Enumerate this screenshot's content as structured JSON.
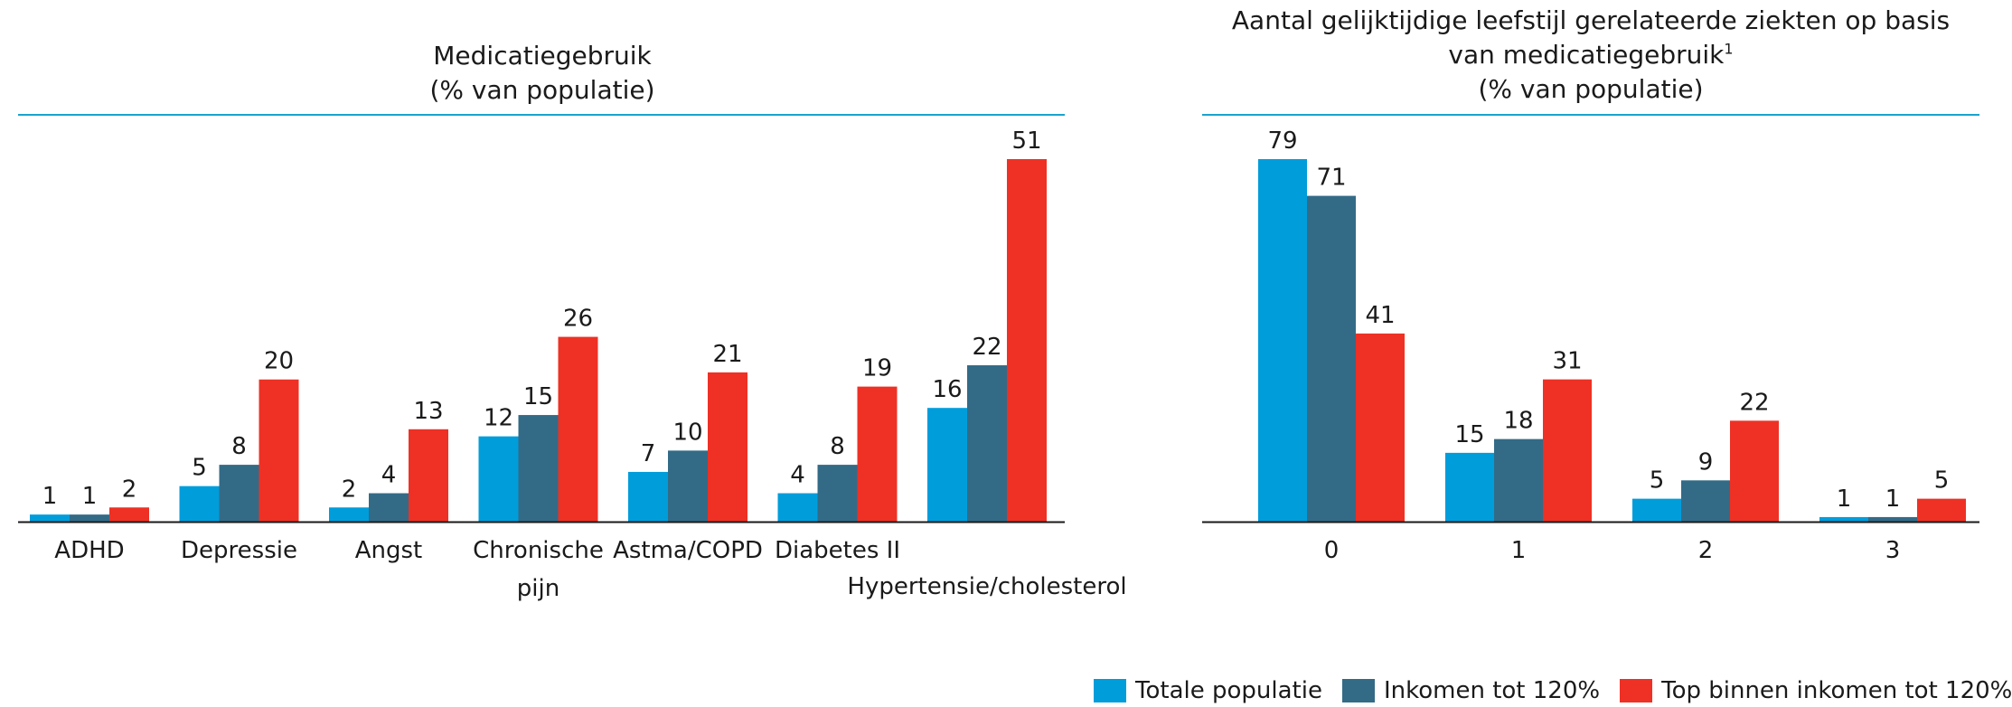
{
  "colors": {
    "totale": "#009ddb",
    "inkomen": "#336b87",
    "top": "#ee3124",
    "rule": "#1ba3cc",
    "axis": "#1a1a1a"
  },
  "legend": [
    {
      "label": "Totale populatie",
      "color": "#009ddb"
    },
    {
      "label": "Inkomen tot 120%",
      "color": "#336b87"
    },
    {
      "label": "Top binnen inkomen tot 120%",
      "color": "#ee3124"
    }
  ],
  "chart_data": [
    {
      "type": "bar",
      "title_line1": "Medicatiegebruik",
      "title_line2": "(% van populatie)",
      "categories": [
        "ADHD",
        "Depressie",
        "Angst",
        "Chronische pijn",
        "Astma/COPD",
        "Diabetes II",
        "Hypertensie/cholesterol"
      ],
      "series": [
        {
          "name": "Totale populatie",
          "values": [
            1,
            5,
            2,
            12,
            7,
            4,
            16
          ]
        },
        {
          "name": "Inkomen tot 120%",
          "values": [
            1,
            8,
            4,
            15,
            10,
            8,
            22
          ]
        },
        {
          "name": "Top binnen inkomen tot 120%",
          "values": [
            2,
            20,
            13,
            26,
            21,
            19,
            51
          ]
        }
      ],
      "ylim": [
        0,
        51
      ],
      "grid": false,
      "legend": "bottom-right"
    },
    {
      "type": "bar",
      "title_line1": "Aantal gelijktijdige leefstijl gerelateerde ziekten op basis",
      "title_line2": "van medicatiegebruik",
      "title_sup": "1",
      "title_line3": "(% van populatie)",
      "categories": [
        "0",
        "1",
        "2",
        "3"
      ],
      "series": [
        {
          "name": "Totale populatie",
          "values": [
            79,
            15,
            5,
            1
          ]
        },
        {
          "name": "Inkomen tot 120%",
          "values": [
            71,
            18,
            9,
            1
          ]
        },
        {
          "name": "Top binnen inkomen tot 120%",
          "values": [
            41,
            31,
            22,
            5
          ]
        }
      ],
      "ylim": [
        0,
        79
      ],
      "grid": false,
      "legend": "bottom-right"
    }
  ]
}
